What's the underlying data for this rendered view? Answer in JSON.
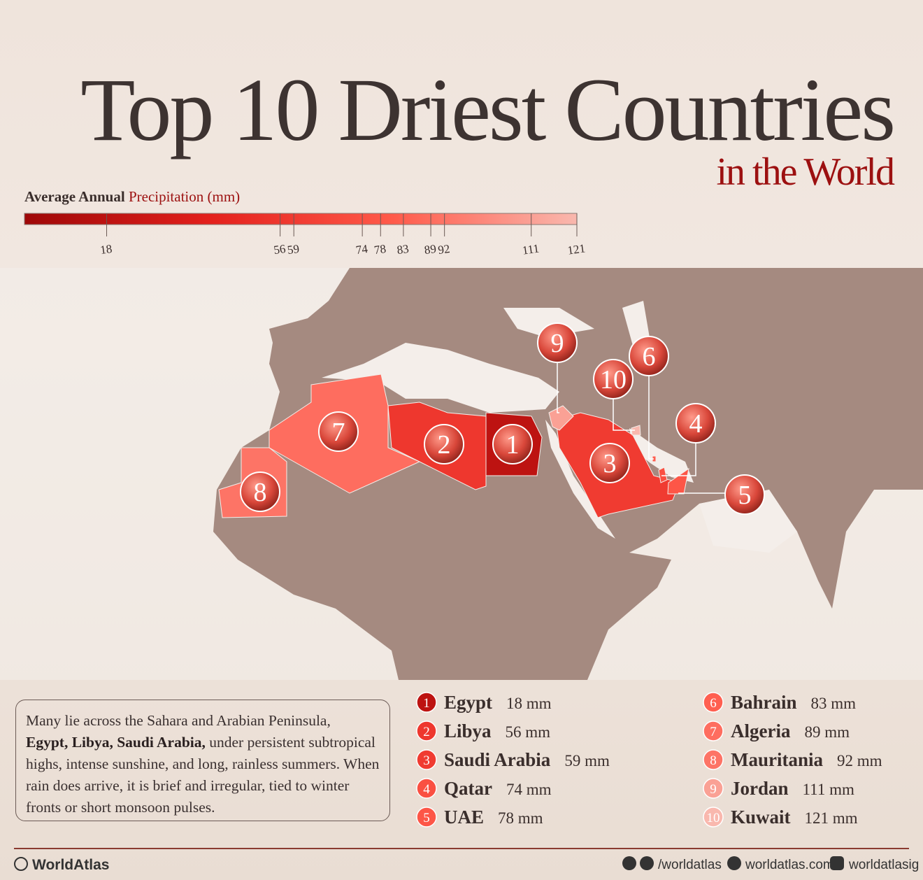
{
  "title": "Top 10 Driest Countries",
  "subtitle": "in the World",
  "scale": {
    "label_start": "Average Annual",
    "label_end": "Precipitation (mm)",
    "lim": [
      0,
      121
    ],
    "ticks": [
      18,
      56,
      59,
      74,
      78,
      83,
      89,
      92,
      111,
      121
    ],
    "colors": [
      "#9e0808",
      "#e3201c",
      "#ff5a4a",
      "#f9b8ae"
    ]
  },
  "countries": [
    {
      "rank": 1,
      "name": "Egypt",
      "value": 18,
      "value_label": "18 mm"
    },
    {
      "rank": 2,
      "name": "Libya",
      "value": 56,
      "value_label": "56 mm"
    },
    {
      "rank": 3,
      "name": "Saudi Arabia",
      "value": 59,
      "value_label": "59 mm"
    },
    {
      "rank": 4,
      "name": "Qatar",
      "value": 74,
      "value_label": "74 mm"
    },
    {
      "rank": 5,
      "name": "UAE",
      "value": 78,
      "value_label": "78 mm"
    },
    {
      "rank": 6,
      "name": "Bahrain",
      "value": 83,
      "value_label": "83 mm"
    },
    {
      "rank": 7,
      "name": "Algeria",
      "value": 89,
      "value_label": "89 mm"
    },
    {
      "rank": 8,
      "name": "Mauritania",
      "value": 92,
      "value_label": "92 mm"
    },
    {
      "rank": 9,
      "name": "Jordan",
      "value": 111,
      "value_label": "111 mm"
    },
    {
      "rank": 10,
      "name": "Kuwait",
      "value": 121,
      "value_label": "121 mm"
    }
  ],
  "description": {
    "part1": "Many lie across the Sahara and Arabian Peninsula,",
    "bold": "Egypt, Libya, Saudi Arabia,",
    "part2": " under persistent subtropical highs, intense sunshine, and long, rainless summers. When rain does arrive, it is brief and irregular, tied to winter fronts or short monsoon pulses."
  },
  "footer": {
    "brand": "WorldAtlas",
    "social": "/worldatlas",
    "website": "worldatlas.com",
    "instagram": "worldatlasig"
  }
}
